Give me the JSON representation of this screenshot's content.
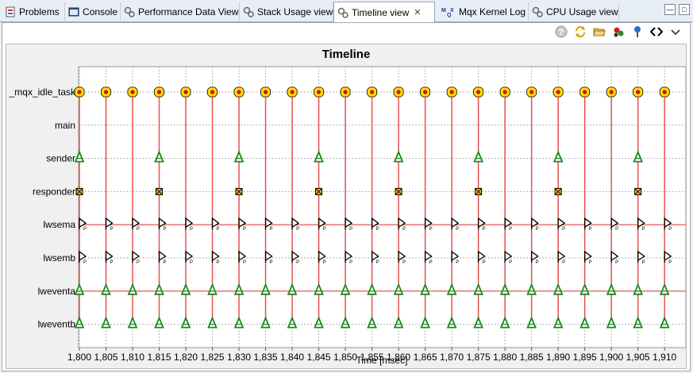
{
  "tabs": [
    {
      "label": "Problems",
      "icon": "problems-icon"
    },
    {
      "label": "Console",
      "icon": "console-icon"
    },
    {
      "label": "Performance Data View",
      "icon": "gears-icon"
    },
    {
      "label": "Stack Usage view",
      "icon": "gears-icon"
    },
    {
      "label": "Timeline view",
      "icon": "gears-icon",
      "active": true
    },
    {
      "label": "Mqx Kernel Log",
      "icon": "mqx-icon"
    },
    {
      "label": "CPU Usage view",
      "icon": "gears-icon"
    }
  ],
  "window_buttons": {
    "minimize": "minimize-icon",
    "maximize": "maximize-icon"
  },
  "toolbar_icons": [
    "help-icon",
    "refresh-icon",
    "open-folder-icon",
    "filter-icon",
    "pin-icon",
    "code-icon",
    "menu-chevron-icon"
  ],
  "chart_data": {
    "type": "timeline",
    "title": "Timeline",
    "xlabel": "Time [msec]",
    "x_ticks": [
      "1,800",
      "1,805",
      "1,810",
      "1,815",
      "1,820",
      "1,825",
      "1,830",
      "1,835",
      "1,840",
      "1,845",
      "1,850",
      "1,855",
      "1,860",
      "1,865",
      "1,870",
      "1,875",
      "1,880",
      "1,885",
      "1,890",
      "1,895",
      "1,900",
      "1,905",
      "1,910"
    ],
    "xlim": [
      1800,
      1914
    ],
    "tasks": [
      "_mqx_idle_task",
      "main",
      "sender",
      "responder",
      "lwsema",
      "lwsemb",
      "lweventa",
      "lweventb"
    ],
    "events": {
      "_mqx_idle_task": {
        "marker": "block",
        "times": [
          1800,
          1805,
          1810,
          1815,
          1820,
          1825,
          1830,
          1835,
          1840,
          1845,
          1850,
          1855,
          1860,
          1865,
          1870,
          1875,
          1880,
          1885,
          1890,
          1895,
          1900,
          1905,
          1910
        ]
      },
      "sender": {
        "marker": "A",
        "times": [
          1800,
          1815,
          1830,
          1845,
          1860,
          1875,
          1890,
          1905
        ]
      },
      "responder": {
        "marker": "wait",
        "times": [
          1800,
          1815,
          1830,
          1845,
          1860,
          1875,
          1890,
          1905
        ]
      },
      "lwsema": {
        "marker": "P",
        "times": [
          1800,
          1805,
          1810,
          1815,
          1820,
          1825,
          1830,
          1835,
          1840,
          1845,
          1850,
          1855,
          1860,
          1865,
          1870,
          1875,
          1880,
          1885,
          1890,
          1895,
          1900,
          1905,
          1910
        ]
      },
      "lwsemb": {
        "marker": "P",
        "times": [
          1800,
          1805,
          1810,
          1815,
          1820,
          1825,
          1830,
          1835,
          1840,
          1845,
          1850,
          1855,
          1860,
          1865,
          1870,
          1875,
          1880,
          1885,
          1890,
          1895,
          1900,
          1905,
          1910
        ]
      },
      "lweventa": {
        "marker": "A",
        "times": [
          1800,
          1805,
          1810,
          1815,
          1820,
          1825,
          1830,
          1835,
          1840,
          1845,
          1850,
          1855,
          1860,
          1865,
          1870,
          1875,
          1880,
          1885,
          1890,
          1895,
          1900,
          1905,
          1910
        ]
      },
      "lweventb": {
        "marker": "A",
        "times": [
          1800,
          1805,
          1810,
          1815,
          1820,
          1825,
          1830,
          1835,
          1840,
          1845,
          1850,
          1855,
          1860,
          1865,
          1870,
          1875,
          1880,
          1885,
          1890,
          1895,
          1900,
          1905,
          1910
        ]
      }
    },
    "colors": {
      "trace": "#e85050",
      "block_fill": "#ffe000",
      "block_dot": "#e00000",
      "a_marker": "#1a8a1a",
      "grid": "#b0b0b0"
    }
  }
}
